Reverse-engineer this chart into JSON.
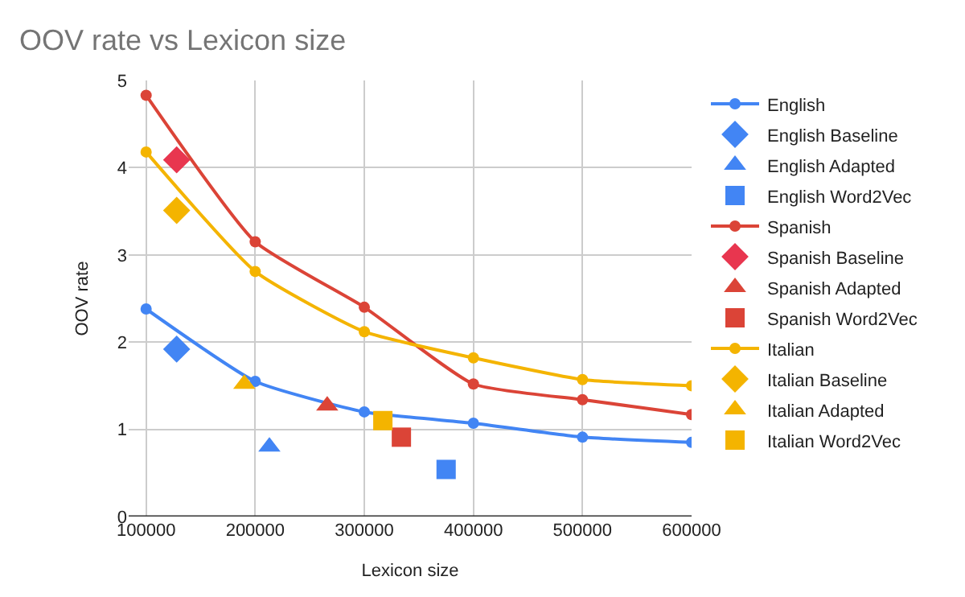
{
  "chart_data": {
    "type": "line",
    "title": "OOV rate vs Lexicon size",
    "xlabel": "Lexicon size",
    "ylabel": "OOV rate",
    "xlim": [
      84000,
      600000
    ],
    "xticks": [
      100000,
      200000,
      300000,
      400000,
      500000,
      600000
    ],
    "ylim": [
      0,
      5
    ],
    "yticks": [
      0,
      1,
      2,
      3,
      4,
      5
    ],
    "grid": true,
    "legend": "right",
    "series": [
      {
        "name": "English",
        "color": "#4285f4",
        "marker": "circle",
        "x": [
          100000,
          200000,
          300000,
          400000,
          500000,
          600000
        ],
        "values": [
          2.38,
          1.55,
          1.2,
          1.07,
          0.91,
          0.85
        ]
      },
      {
        "name": "English Baseline",
        "color": "#4285f4",
        "type": "scatter",
        "marker": "diamond",
        "x": [
          128000
        ],
        "values": [
          1.92
        ]
      },
      {
        "name": "English Adapted",
        "color": "#4285f4",
        "type": "scatter",
        "marker": "triangle",
        "x": [
          213000
        ],
        "values": [
          0.8
        ]
      },
      {
        "name": "English Word2Vec",
        "color": "#4285f4",
        "type": "scatter",
        "marker": "square",
        "x": [
          375000
        ],
        "values": [
          0.54
        ]
      },
      {
        "name": "Spanish",
        "color": "#db4437",
        "marker": "circle",
        "x": [
          100000,
          200000,
          300000,
          400000,
          500000,
          600000
        ],
        "values": [
          4.83,
          3.15,
          2.4,
          1.52,
          1.34,
          1.17
        ]
      },
      {
        "name": "Spanish Baseline",
        "color": "#e8364f",
        "type": "scatter",
        "marker": "diamond",
        "x": [
          128000
        ],
        "values": [
          4.09
        ]
      },
      {
        "name": "Spanish Adapted",
        "color": "#db4437",
        "type": "scatter",
        "marker": "triangle",
        "x": [
          266000
        ],
        "values": [
          1.27
        ]
      },
      {
        "name": "Spanish Word2Vec",
        "color": "#db4437",
        "type": "scatter",
        "marker": "square",
        "x": [
          334000
        ],
        "values": [
          0.91
        ]
      },
      {
        "name": "Italian",
        "color": "#f4b400",
        "marker": "circle",
        "x": [
          100000,
          200000,
          300000,
          400000,
          500000,
          600000
        ],
        "values": [
          4.18,
          2.81,
          2.12,
          1.82,
          1.57,
          1.5
        ]
      },
      {
        "name": "Italian Baseline",
        "color": "#f4b400",
        "type": "scatter",
        "marker": "diamond",
        "x": [
          128000
        ],
        "values": [
          3.51
        ]
      },
      {
        "name": "Italian Adapted",
        "color": "#f4b400",
        "type": "scatter",
        "marker": "triangle",
        "x": [
          190000
        ],
        "values": [
          1.52
        ]
      },
      {
        "name": "Italian Word2Vec",
        "color": "#f4b400",
        "type": "scatter",
        "marker": "square",
        "x": [
          317000
        ],
        "values": [
          1.1
        ]
      }
    ]
  }
}
